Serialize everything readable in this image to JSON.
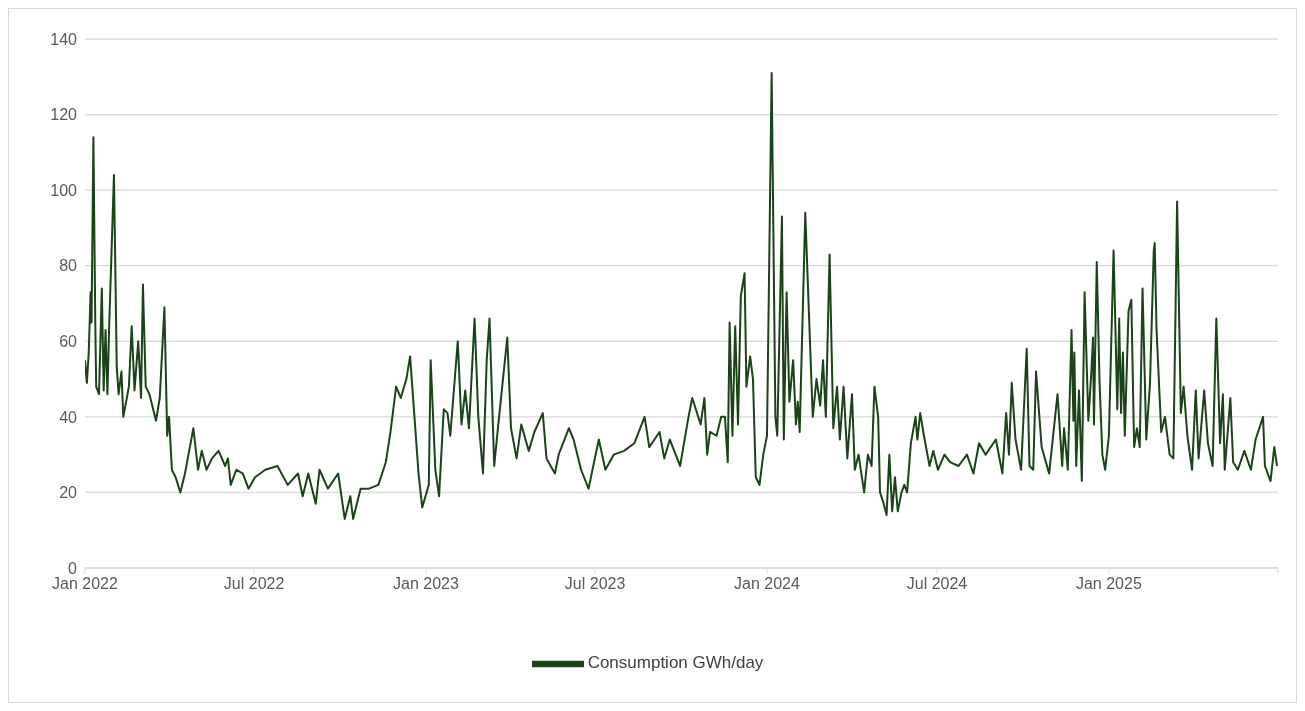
{
  "chart_data": {
    "type": "line",
    "x": [
      "2022-01-01",
      "2022-01-03",
      "2022-01-05",
      "2022-01-07",
      "2022-01-08",
      "2022-01-10",
      "2022-01-12",
      "2022-01-13",
      "2022-01-16",
      "2022-01-19",
      "2022-01-21",
      "2022-01-23",
      "2022-01-25",
      "2022-01-27",
      "2022-02-01",
      "2022-02-04",
      "2022-02-06",
      "2022-02-09",
      "2022-02-11",
      "2022-02-17",
      "2022-02-20",
      "2022-02-23",
      "2022-02-27",
      "2022-03-02",
      "2022-03-04",
      "2022-03-07",
      "2022-03-11",
      "2022-03-18",
      "2022-03-22",
      "2022-03-27",
      "2022-03-30",
      "2022-04-01",
      "2022-04-04",
      "2022-04-08",
      "2022-04-13",
      "2022-04-18",
      "2022-04-21",
      "2022-04-27",
      "2022-05-02",
      "2022-05-06",
      "2022-05-11",
      "2022-05-17",
      "2022-05-24",
      "2022-05-31",
      "2022-06-03",
      "2022-06-06",
      "2022-06-12",
      "2022-06-19",
      "2022-06-25",
      "2022-07-02",
      "2022-07-13",
      "2022-07-26",
      "2022-08-06",
      "2022-08-17",
      "2022-08-22",
      "2022-08-28",
      "2022-09-05",
      "2022-09-09",
      "2022-09-18",
      "2022-09-29",
      "2022-10-06",
      "2022-10-12",
      "2022-10-15",
      "2022-10-23",
      "2022-11-01",
      "2022-11-11",
      "2022-11-19",
      "2022-11-24",
      "2022-11-30",
      "2022-12-05",
      "2022-12-11",
      "2022-12-15",
      "2022-12-24",
      "2022-12-28",
      "2023-01-04",
      "2023-01-06",
      "2023-01-11",
      "2023-01-15",
      "2023-01-20",
      "2023-01-24",
      "2023-01-27",
      "2023-02-04",
      "2023-02-08",
      "2023-02-12",
      "2023-02-16",
      "2023-02-22",
      "2023-02-26",
      "2023-03-03",
      "2023-03-07",
      "2023-03-10",
      "2023-03-15",
      "2023-03-19",
      "2023-03-29",
      "2023-04-02",
      "2023-04-08",
      "2023-04-13",
      "2023-04-21",
      "2023-04-27",
      "2023-05-06",
      "2023-05-10",
      "2023-05-19",
      "2023-05-23",
      "2023-06-03",
      "2023-06-08",
      "2023-06-16",
      "2023-06-24",
      "2023-07-05",
      "2023-07-12",
      "2023-07-21",
      "2023-08-01",
      "2023-08-12",
      "2023-08-23",
      "2023-08-28",
      "2023-09-08",
      "2023-09-13",
      "2023-09-19",
      "2023-09-30",
      "2023-10-09",
      "2023-10-13",
      "2023-10-22",
      "2023-10-26",
      "2023-10-29",
      "2023-11-01",
      "2023-11-08",
      "2023-11-13",
      "2023-11-17",
      "2023-11-20",
      "2023-11-22",
      "2023-11-25",
      "2023-11-28",
      "2023-12-01",
      "2023-12-04",
      "2023-12-08",
      "2023-12-10",
      "2023-12-14",
      "2023-12-17",
      "2023-12-20",
      "2023-12-24",
      "2023-12-28",
      "2024-01-01",
      "2024-01-06",
      "2024-01-10",
      "2024-01-12",
      "2024-01-17",
      "2024-01-19",
      "2024-01-22",
      "2024-01-25",
      "2024-01-29",
      "2024-02-01",
      "2024-02-03",
      "2024-02-05",
      "2024-02-11",
      "2024-02-16",
      "2024-02-19",
      "2024-02-23",
      "2024-02-27",
      "2024-03-01",
      "2024-03-04",
      "2024-03-08",
      "2024-03-12",
      "2024-03-16",
      "2024-03-19",
      "2024-03-23",
      "2024-03-27",
      "2024-04-01",
      "2024-04-04",
      "2024-04-08",
      "2024-04-14",
      "2024-04-18",
      "2024-04-22",
      "2024-04-25",
      "2024-04-29",
      "2024-05-01",
      "2024-05-05",
      "2024-05-08",
      "2024-05-11",
      "2024-05-14",
      "2024-05-17",
      "2024-05-20",
      "2024-05-24",
      "2024-05-27",
      "2024-05-30",
      "2024-06-03",
      "2024-06-08",
      "2024-06-10",
      "2024-06-13",
      "2024-06-17",
      "2024-06-23",
      "2024-06-27",
      "2024-07-02",
      "2024-07-09",
      "2024-07-15",
      "2024-07-24",
      "2024-08-02",
      "2024-08-09",
      "2024-08-15",
      "2024-08-22",
      "2024-09-02",
      "2024-09-09",
      "2024-09-13",
      "2024-09-16",
      "2024-09-19",
      "2024-09-23",
      "2024-09-29",
      "2024-10-05",
      "2024-10-08",
      "2024-10-12",
      "2024-10-15",
      "2024-10-21",
      "2024-10-29",
      "2024-11-07",
      "2024-11-12",
      "2024-11-14",
      "2024-11-18",
      "2024-11-22",
      "2024-11-24",
      "2024-11-25",
      "2024-11-27",
      "2024-11-30",
      "2024-12-03",
      "2024-12-06",
      "2024-12-10",
      "2024-12-13",
      "2024-12-15",
      "2024-12-16",
      "2024-12-19",
      "2024-12-22",
      "2024-12-25",
      "2024-12-28",
      "2025-01-01",
      "2025-01-06",
      "2025-01-10",
      "2025-01-12",
      "2025-01-14",
      "2025-01-16",
      "2025-01-18",
      "2025-01-22",
      "2025-01-25",
      "2025-01-28",
      "2025-01-31",
      "2025-02-03",
      "2025-02-06",
      "2025-02-10",
      "2025-02-14",
      "2025-02-18",
      "2025-02-19",
      "2025-02-21",
      "2025-02-26",
      "2025-03-02",
      "2025-03-07",
      "2025-03-11",
      "2025-03-15",
      "2025-03-19",
      "2025-03-22",
      "2025-03-26",
      "2025-03-31",
      "2025-04-04",
      "2025-04-07",
      "2025-04-13",
      "2025-04-17",
      "2025-04-22",
      "2025-04-26",
      "2025-04-30",
      "2025-05-03",
      "2025-05-05",
      "2025-05-11",
      "2025-05-14",
      "2025-05-19",
      "2025-05-26",
      "2025-06-02",
      "2025-06-07",
      "2025-06-15",
      "2025-06-17",
      "2025-06-23",
      "2025-06-27",
      "2025-06-30"
    ],
    "series": [
      {
        "name": "Consumption GWh/day",
        "color": "#1b4318",
        "values": [
          55,
          49,
          57,
          73,
          65,
          114,
          65,
          48,
          46,
          74,
          47,
          63,
          46,
          65,
          104,
          53,
          46,
          52,
          40,
          48,
          64,
          47,
          60,
          45,
          75,
          48,
          46,
          39,
          45,
          69,
          35,
          40,
          26,
          24,
          20,
          25,
          29,
          37,
          26,
          31,
          26,
          29,
          31,
          27,
          29,
          22,
          26,
          25,
          21,
          24,
          26,
          27,
          22,
          25,
          19,
          25,
          17,
          26,
          21,
          25,
          13,
          19,
          13,
          21,
          21,
          22,
          28,
          36,
          48,
          45,
          50,
          56,
          25,
          16,
          22,
          55,
          26,
          19,
          42,
          41,
          35,
          60,
          38,
          47,
          37,
          66,
          40,
          25,
          55,
          66,
          27,
          37,
          61,
          37,
          29,
          38,
          31,
          36,
          41,
          29,
          25,
          30,
          37,
          34,
          26,
          21,
          34,
          26,
          30,
          31,
          33,
          40,
          32,
          36,
          29,
          34,
          27,
          40,
          45,
          38,
          45,
          30,
          36,
          35,
          40,
          40,
          28,
          65,
          35,
          64,
          38,
          72,
          78,
          48,
          56,
          50,
          24,
          22,
          30,
          35,
          131,
          40,
          35,
          93,
          34,
          73,
          44,
          55,
          38,
          44,
          36,
          94,
          60,
          40,
          50,
          43,
          55,
          40,
          83,
          37,
          48,
          34,
          48,
          29,
          46,
          26,
          30,
          20,
          30,
          27,
          48,
          40,
          20,
          17,
          14,
          30,
          15,
          24,
          15,
          20,
          22,
          20,
          33,
          40,
          34,
          41,
          35,
          27,
          31,
          26,
          30,
          28,
          27,
          30,
          25,
          33,
          30,
          34,
          25,
          41,
          30,
          49,
          34,
          26,
          58,
          27,
          26,
          52,
          32,
          25,
          46,
          27,
          37,
          26,
          63,
          39,
          57,
          27,
          47,
          23,
          73,
          39,
          51,
          61,
          38,
          81,
          49,
          30,
          26,
          35,
          84,
          42,
          66,
          41,
          57,
          35,
          68,
          71,
          32,
          37,
          32,
          74,
          34,
          49,
          84,
          86,
          63,
          36,
          40,
          30,
          29,
          97,
          41,
          48,
          35,
          26,
          47,
          29,
          47,
          33,
          27,
          66,
          33,
          46,
          26,
          45,
          28,
          26,
          31,
          26,
          34,
          40,
          27,
          23,
          32,
          27
        ]
      }
    ],
    "xlim": [
      "2022-01-01",
      "2025-07-01"
    ],
    "xticks": [
      {
        "value": "2022-01-01",
        "label": "Jan 2022"
      },
      {
        "value": "2022-07-01",
        "label": "Jul 2022"
      },
      {
        "value": "2023-01-01",
        "label": "Jan 2023"
      },
      {
        "value": "2023-07-01",
        "label": "Jul 2023"
      },
      {
        "value": "2024-01-01",
        "label": "Jan 2024"
      },
      {
        "value": "2024-07-01",
        "label": "Jul 2024"
      },
      {
        "value": "2025-01-01",
        "label": "Jan 2025"
      },
      {
        "value": "2025-07-01",
        "label": null
      }
    ],
    "ylim": [
      0,
      140
    ],
    "yticks": [
      0,
      20,
      40,
      60,
      80,
      100,
      120,
      140
    ],
    "grid": "y",
    "legend": "bottom"
  }
}
